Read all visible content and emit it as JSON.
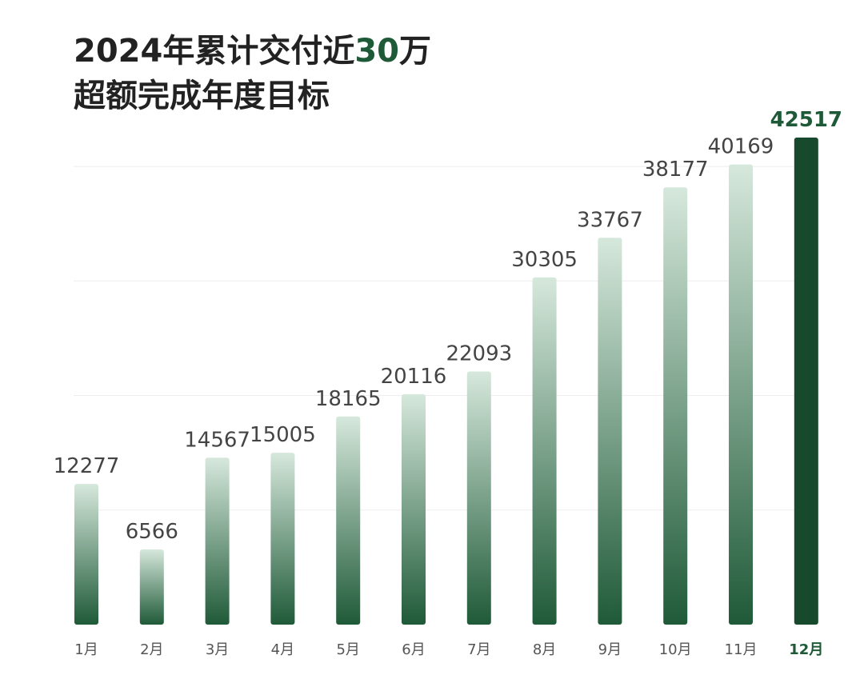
{
  "header": {
    "title_prefix": "2024年累计交付近",
    "title_highlight": "30",
    "title_suffix": "万",
    "subtitle": "超额完成年度目标"
  },
  "colors": {
    "accent": "#1e5a37",
    "bar_top": "#d6e8dc",
    "bar_bottom": "#1f5a38",
    "highlight_bar": "#17492c",
    "label_text": "#444444",
    "grid": "#eeeeee"
  },
  "chart_data": {
    "type": "bar",
    "title": "",
    "xlabel": "",
    "ylabel": "",
    "categories": [
      "1月",
      "2月",
      "3月",
      "4月",
      "5月",
      "6月",
      "7月",
      "8月",
      "9月",
      "10月",
      "11月",
      "12月"
    ],
    "values": [
      12277,
      6566,
      14567,
      15005,
      18165,
      20116,
      22093,
      30305,
      33767,
      38177,
      40169,
      42517
    ],
    "highlight_index": 11,
    "ylim": [
      0,
      45000
    ],
    "grid": true,
    "legend": "none"
  }
}
